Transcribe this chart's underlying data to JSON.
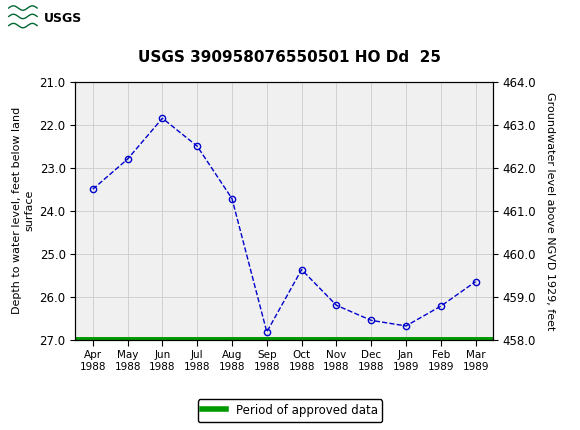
{
  "title": "USGS 390958076550501 HO Dd  25",
  "x_vals": [
    0,
    1,
    2,
    3,
    4,
    5,
    6,
    7,
    8,
    9,
    10,
    11
  ],
  "depth_vals": [
    23.5,
    22.8,
    21.85,
    22.5,
    23.72,
    26.82,
    25.37,
    26.2,
    26.55,
    26.68,
    26.22,
    25.65
  ],
  "month_labels": [
    "Apr\n1988",
    "May\n1988",
    "Jun\n1988",
    "Jul\n1988",
    "Aug\n1988",
    "Sep\n1988",
    "Oct\n1988",
    "Nov\n1988",
    "Dec\n1988",
    "Jan\n1989",
    "Feb\n1989",
    "Mar\n1989"
  ],
  "ylim_left": [
    27.0,
    21.0
  ],
  "ylim_right": [
    458.0,
    464.0
  ],
  "ylabel_left": "Depth to water level, feet below land\nsurface",
  "ylabel_right": "Groundwater level above NGVD 1929, feet",
  "yticks_left": [
    21.0,
    22.0,
    23.0,
    24.0,
    25.0,
    26.0,
    27.0
  ],
  "yticks_right": [
    458.0,
    459.0,
    460.0,
    461.0,
    462.0,
    463.0,
    464.0
  ],
  "line_color": "#0000cc",
  "marker_color": "#0000cc",
  "green_line_color": "#009900",
  "plot_bg_color": "#f0f0f0",
  "grid_color": "#cccccc",
  "legend_label": "Period of approved data",
  "header_color": "#006633",
  "title_fontsize": 11,
  "axis_label_fontsize": 8,
  "tick_fontsize": 8.5
}
